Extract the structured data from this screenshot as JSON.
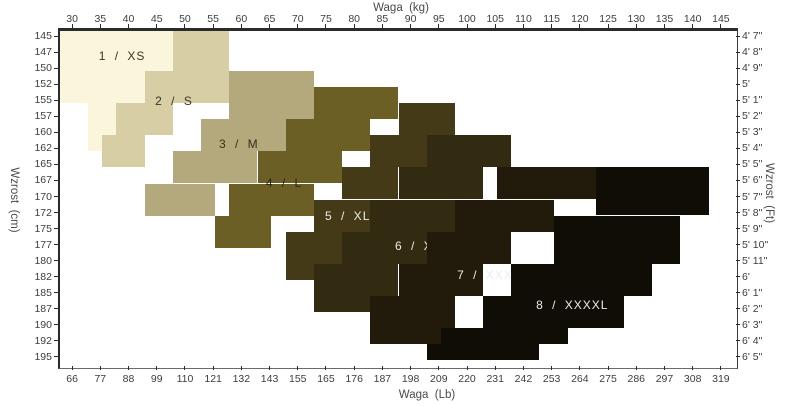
{
  "chart_data": {
    "type": "area",
    "description": "Stepped size-selection region chart: weight vs height, 8 clothing sizes",
    "axes": {
      "top": {
        "title": "Waga  (kg)",
        "range_kg": [
          27.5,
          147.5
        ],
        "ticks": [
          30,
          35,
          40,
          45,
          50,
          55,
          60,
          65,
          70,
          75,
          80,
          85,
          90,
          95,
          100,
          105,
          110,
          115,
          120,
          125,
          130,
          135,
          140,
          145
        ]
      },
      "bottom": {
        "title": "Waga  (Lb)",
        "ticks": [
          66,
          77,
          88,
          99,
          110,
          121,
          132,
          143,
          155,
          165,
          176,
          187,
          198,
          209,
          220,
          231,
          242,
          253,
          264,
          275,
          286,
          297,
          308,
          319
        ]
      },
      "left": {
        "title": "Wzrost  (cm)",
        "range_cm": [
          143.75,
          196.25
        ],
        "ticks": [
          145,
          147,
          150,
          152,
          155,
          157,
          160,
          162,
          165,
          167,
          170,
          172,
          175,
          177,
          180,
          182,
          185,
          187,
          190,
          192,
          195
        ]
      },
      "right": {
        "title": "Wzrost  (Ft)",
        "ticks": [
          "4' 7\"",
          "4' 8\"",
          "4' 9\"",
          "5'",
          "5' 1\"",
          "5' 2\"",
          "5' 3\"",
          "5' 4\"",
          "5' 5\"",
          "5' 6\"",
          "5' 7\"",
          "5' 8\"",
          "5' 9\"",
          "5' 10\"",
          "5' 11\"",
          "6'",
          "6' 1\"",
          "6' 2\"",
          "6' 3\"",
          "6' 4\"",
          "6' 5\""
        ]
      }
    },
    "grid": {
      "row_slots": 20,
      "row_step_cm": 2.5,
      "col_step_kg": 2.5
    },
    "sizes": [
      {
        "label": "1 / XS",
        "color": "#FAF6DC",
        "label_color": "#3B3424",
        "label_kg": 38.5,
        "label_row": 1.06,
        "blocks": [
          {
            "r": [
              0,
              1
            ],
            "kg": [
              27.5,
              47.5
            ]
          },
          {
            "r": [
              2,
              3
            ],
            "kg": [
              27.5,
              42.5
            ]
          },
          {
            "r": [
              4,
              6
            ],
            "kg": [
              32.5,
              37.5
            ]
          }
        ]
      },
      {
        "label": "2 / S",
        "color": "#D7CEA5",
        "label_color": "#3B3424",
        "label_kg": 47.7,
        "label_row": 3.86,
        "blocks": [
          {
            "r": [
              0,
              1
            ],
            "kg": [
              47.5,
              57.5
            ]
          },
          {
            "r": [
              2,
              3
            ],
            "kg": [
              42.5,
              57.5
            ]
          },
          {
            "r": [
              4,
              5
            ],
            "kg": [
              37.5,
              47.5
            ]
          },
          {
            "r": [
              6,
              7
            ],
            "kg": [
              35,
              42.5
            ]
          }
        ]
      },
      {
        "label": "3 / M",
        "color": "#B3A97C",
        "label_color": "#35301c",
        "label_kg": 59.2,
        "label_row": 6.54,
        "blocks": [
          {
            "r": [
              2,
              4
            ],
            "kg": [
              57.5,
              72.5
            ]
          },
          {
            "r": [
              5,
              6
            ],
            "kg": [
              52.5,
              67.5
            ]
          },
          {
            "r": [
              7,
              8
            ],
            "kg": [
              47.5,
              62.5
            ]
          },
          {
            "r": [
              9,
              10
            ],
            "kg": [
              42.5,
              55
            ]
          }
        ]
      },
      {
        "label": "4 / L",
        "color": "#6C5F25",
        "label_color": "#2c2810",
        "label_kg": 67.2,
        "label_row": 8.97,
        "blocks": [
          {
            "r": [
              3,
              4
            ],
            "kg": [
              72.5,
              87.5
            ]
          },
          {
            "r": [
              5,
              6
            ],
            "kg": [
              67.5,
              82.5
            ]
          },
          {
            "r": [
              7,
              8
            ],
            "kg": [
              62.5,
              77.5
            ]
          },
          {
            "r": [
              9,
              10
            ],
            "kg": [
              57.5,
              72.5
            ]
          },
          {
            "r": [
              11,
              12
            ],
            "kg": [
              55,
              65
            ]
          }
        ]
      },
      {
        "label": "5 / XL",
        "color": "#453A17",
        "label_color": "#ececec",
        "label_kg": 78.5,
        "label_row": 11.03,
        "blocks": [
          {
            "r": [
              4,
              5
            ],
            "kg": [
              87.5,
              97.5
            ]
          },
          {
            "r": [
              6,
              7
            ],
            "kg": [
              82.5,
              92.5
            ]
          },
          {
            "r": [
              8,
              9
            ],
            "kg": [
              77.5,
              87.5
            ]
          },
          {
            "r": [
              10,
              11
            ],
            "kg": [
              72.5,
              82.5
            ]
          },
          {
            "r": [
              12,
              14
            ],
            "kg": [
              67.5,
              77.5
            ]
          }
        ]
      },
      {
        "label": "6 / XXL",
        "color": "#322A11",
        "label_color": "#ececec",
        "label_kg": 91.7,
        "label_row": 12.9,
        "blocks": [
          {
            "r": [
              6,
              7
            ],
            "kg": [
              92.5,
              107.5
            ]
          },
          {
            "r": [
              8,
              9
            ],
            "kg": [
              87.5,
              102.5
            ]
          },
          {
            "r": [
              10,
              11
            ],
            "kg": [
              82.5,
              97.5
            ]
          },
          {
            "r": [
              12,
              13
            ],
            "kg": [
              77.5,
              92.5
            ]
          },
          {
            "r": [
              14,
              16
            ],
            "kg": [
              72.5,
              87.5
            ]
          }
        ]
      },
      {
        "label": "7 / XXXL",
        "color": "#221B0C",
        "label_color": "#ececec",
        "label_kg": 103.5,
        "label_row": 14.7,
        "blocks": [
          {
            "r": [
              8,
              9
            ],
            "kg": [
              105,
              122.5
            ]
          },
          {
            "r": [
              10,
              11
            ],
            "kg": [
              97.5,
              115
            ]
          },
          {
            "r": [
              12,
              13
            ],
            "kg": [
              92.5,
              107.5
            ]
          },
          {
            "r": [
              14,
              15
            ],
            "kg": [
              87.5,
              102.5
            ]
          },
          {
            "r": [
              16,
              18
            ],
            "kg": [
              82.5,
              97.5
            ]
          }
        ]
      },
      {
        "label": "8 / XXXXL",
        "color": "#100C06",
        "label_color": "#ececec",
        "label_kg": 118.3,
        "label_row": 16.57,
        "blocks": [
          {
            "r": [
              8,
              10
            ],
            "kg": [
              122.5,
              142.5
            ]
          },
          {
            "r": [
              11,
              13
            ],
            "kg": [
              115,
              137.5
            ]
          },
          {
            "r": [
              14,
              15
            ],
            "kg": [
              107.5,
              132.5
            ]
          },
          {
            "r": [
              16,
              17
            ],
            "kg": [
              102.5,
              127.5
            ]
          },
          {
            "r": [
              18,
              18
            ],
            "kg": [
              95,
              117.5
            ]
          },
          {
            "r": [
              19,
              19
            ],
            "kg": [
              92.5,
              112.5
            ]
          }
        ]
      }
    ]
  }
}
